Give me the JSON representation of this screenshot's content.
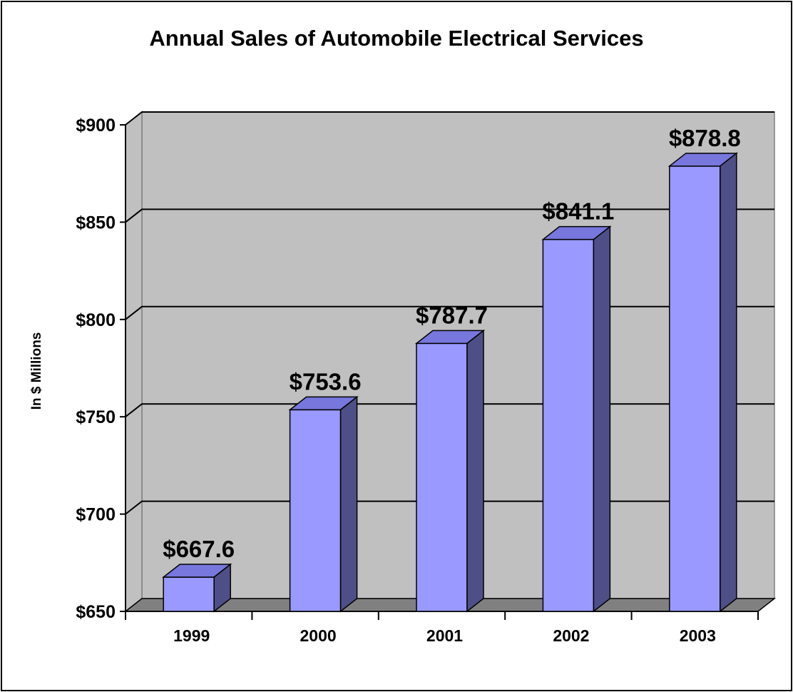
{
  "chart_data": {
    "type": "bar",
    "title": "Annual Sales of Automobile Electrical Services",
    "xlabel": "",
    "ylabel": "In $ Millions",
    "categories": [
      "1999",
      "2000",
      "2001",
      "2002",
      "2003"
    ],
    "values": [
      667.6,
      753.6,
      787.7,
      841.1,
      878.8
    ],
    "data_labels": [
      "$667.6",
      "$753.6",
      "$787.7",
      "$841.1",
      "$878.8"
    ],
    "ylim": [
      650,
      900
    ],
    "y_ticks": [
      650,
      700,
      750,
      800,
      850,
      900
    ],
    "y_tick_labels": [
      "$650",
      "$700",
      "$750",
      "$800",
      "$850",
      "$900"
    ],
    "grid": true,
    "three_d": true,
    "colors": {
      "plot_wall": "#c0c0c0",
      "floor": "#808080",
      "bar_front": "#9999ff",
      "bar_top": "#7777dd",
      "bar_side": "#4f4f88"
    }
  }
}
